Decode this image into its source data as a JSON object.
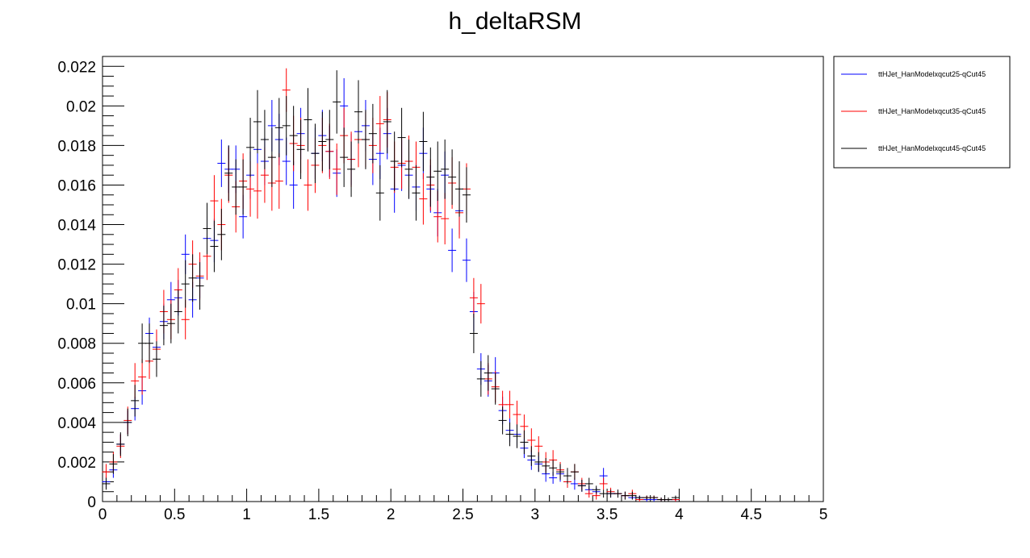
{
  "chart_data": {
    "type": "scatter",
    "title": "h_deltaRSM",
    "xlabel": "",
    "ylabel": "",
    "xlim": [
      0,
      5
    ],
    "ylim": [
      0,
      0.0225
    ],
    "bin_width": 0.05,
    "x_ticks": [
      "0",
      "0.5",
      "1",
      "1.5",
      "2",
      "2.5",
      "3",
      "3.5",
      "4",
      "4.5",
      "5"
    ],
    "y_ticks": [
      "0",
      "0.002",
      "0.004",
      "0.006",
      "0.008",
      "0.01",
      "0.012",
      "0.014",
      "0.016",
      "0.018",
      "0.02",
      "0.022"
    ],
    "grid": false,
    "legend_position": "outside-top-right",
    "series": [
      {
        "name": "ttHJet_HanModelxqcut25-qCut45",
        "color": "#0000ff",
        "values": [
          0.001,
          0.0016,
          0.0029,
          0.004,
          0.0047,
          0.0056,
          0.0085,
          0.0078,
          0.0091,
          0.0102,
          0.0103,
          0.0125,
          0.0102,
          0.0113,
          0.0133,
          0.0132,
          0.0171,
          0.0168,
          0.0168,
          0.0144,
          0.0165,
          0.0178,
          0.0172,
          0.019,
          0.0183,
          0.0172,
          0.016,
          0.0186,
          0.0193,
          0.0176,
          0.0185,
          0.0177,
          0.0166,
          0.02,
          0.0173,
          0.0187,
          0.019,
          0.0173,
          0.0176,
          0.0186,
          0.0158,
          0.017,
          0.0165,
          0.0159,
          0.0176,
          0.0158,
          0.0146,
          0.0165,
          0.0127,
          0.0147,
          0.0122,
          0.0096,
          0.0067,
          0.0061,
          0.0065,
          0.0046,
          0.0036,
          0.0034,
          0.0027,
          0.0021,
          0.0019,
          0.0014,
          0.0012,
          0.0014,
          0.001,
          0.0009,
          0.0008,
          0.0006,
          0.0005,
          0.0013,
          0.0004,
          0.0004,
          0.0003,
          0.0002,
          0.0002,
          0.0001,
          0.0001,
          0.0001,
          0.0001,
          0.0001
        ],
        "errors": [
          0.0003,
          0.0004,
          0.0005,
          0.0006,
          0.0006,
          0.0007,
          0.0008,
          0.0008,
          0.0009,
          0.0009,
          0.0009,
          0.001,
          0.0009,
          0.001,
          0.0011,
          0.0011,
          0.0012,
          0.0012,
          0.0012,
          0.0011,
          0.0012,
          0.0013,
          0.0012,
          0.0013,
          0.0013,
          0.0012,
          0.0012,
          0.0013,
          0.0013,
          0.0013,
          0.0013,
          0.0013,
          0.0012,
          0.0014,
          0.0013,
          0.0013,
          0.0013,
          0.0013,
          0.0013,
          0.0013,
          0.0012,
          0.0013,
          0.0012,
          0.0012,
          0.0013,
          0.0012,
          0.0012,
          0.0012,
          0.0011,
          0.0012,
          0.0011,
          0.001,
          0.0008,
          0.0008,
          0.0008,
          0.0007,
          0.0006,
          0.0006,
          0.0005,
          0.0005,
          0.0004,
          0.0004,
          0.0003,
          0.0004,
          0.0003,
          0.0003,
          0.0003,
          0.0002,
          0.0002,
          0.0004,
          0.0002,
          0.0002,
          0.0002,
          0.0001,
          0.0001,
          0.0001,
          0.0001,
          0.0001,
          0.0001,
          0.0001
        ]
      },
      {
        "name": "ttHJet_HanModelxqcut35-qCut45",
        "color": "#ff0000",
        "values": [
          0.0015,
          0.002,
          0.0028,
          0.0041,
          0.0061,
          0.0063,
          0.0071,
          0.0077,
          0.0096,
          0.0092,
          0.0107,
          0.0092,
          0.012,
          0.0114,
          0.0124,
          0.0152,
          0.014,
          0.0165,
          0.0149,
          0.0162,
          0.0158,
          0.0157,
          0.0165,
          0.0161,
          0.0162,
          0.0208,
          0.0181,
          0.018,
          0.016,
          0.017,
          0.018,
          0.0177,
          0.0168,
          0.0185,
          0.0173,
          0.0183,
          0.0183,
          0.018,
          0.0191,
          0.0193,
          0.0169,
          0.0171,
          0.0172,
          0.0169,
          0.0153,
          0.016,
          0.0144,
          0.0143,
          0.0161,
          0.0146,
          0.0158,
          0.0103,
          0.01,
          0.0062,
          0.0058,
          0.0049,
          0.0049,
          0.0044,
          0.0038,
          0.0031,
          0.0028,
          0.002,
          0.0021,
          0.0016,
          0.001,
          0.0015,
          0.0009,
          0.0004,
          0.0003,
          0.0009,
          0.0005,
          0.0004,
          0.0003,
          0.0004,
          0.0001,
          0.0002,
          0.0002,
          0.0001,
          0.0001,
          0.0001
        ],
        "errors": [
          0.0004,
          0.0005,
          0.0006,
          0.0007,
          0.0009,
          0.0009,
          0.0009,
          0.001,
          0.0011,
          0.001,
          0.0011,
          0.001,
          0.0012,
          0.0012,
          0.0012,
          0.0013,
          0.0013,
          0.0014,
          0.0013,
          0.0014,
          0.0014,
          0.0014,
          0.0014,
          0.0014,
          0.0014,
          0.0011,
          0.0014,
          0.0014,
          0.0013,
          0.0014,
          0.0014,
          0.0014,
          0.0013,
          0.0014,
          0.0014,
          0.0014,
          0.0014,
          0.0014,
          0.0014,
          0.0014,
          0.0013,
          0.0013,
          0.0013,
          0.0013,
          0.0013,
          0.0013,
          0.0013,
          0.0013,
          0.0013,
          0.0013,
          0.0013,
          0.001,
          0.001,
          0.0008,
          0.0008,
          0.0007,
          0.0007,
          0.0007,
          0.0006,
          0.0006,
          0.0005,
          0.0005,
          0.0005,
          0.0004,
          0.0003,
          0.0004,
          0.0003,
          0.0002,
          0.0002,
          0.0003,
          0.0002,
          0.0002,
          0.0002,
          0.0002,
          0.0001,
          0.0001,
          0.0001,
          0.0001,
          0.0001,
          0.0001
        ]
      },
      {
        "name": "ttHJet_HanModelxqcut45-qCut45",
        "color": "#000000",
        "values": [
          0.0009,
          0.0019,
          0.0029,
          0.004,
          0.0051,
          0.008,
          0.008,
          0.0072,
          0.0089,
          0.009,
          0.0096,
          0.011,
          0.0113,
          0.0109,
          0.0138,
          0.0129,
          0.0135,
          0.0166,
          0.0159,
          0.0159,
          0.0179,
          0.0192,
          0.0183,
          0.0174,
          0.0189,
          0.019,
          0.0185,
          0.0178,
          0.0193,
          0.0176,
          0.0182,
          0.0183,
          0.0202,
          0.0174,
          0.0168,
          0.0197,
          0.0183,
          0.0186,
          0.0156,
          0.0192,
          0.0172,
          0.0184,
          0.0168,
          0.0156,
          0.0182,
          0.0164,
          0.0167,
          0.0168,
          0.0164,
          0.0158,
          0.0155,
          0.0085,
          0.0062,
          0.0065,
          0.0057,
          0.0041,
          0.0034,
          0.0033,
          0.003,
          0.0023,
          0.002,
          0.0018,
          0.0017,
          0.0015,
          0.0013,
          0.0015,
          0.0008,
          0.0009,
          0.0006,
          0.0004,
          0.0004,
          0.0004,
          0.0003,
          0.0003,
          0.0002,
          0.0002,
          0.0002,
          0.0001,
          0.0001,
          0.0002
        ],
        "errors": [
          0.0003,
          0.0005,
          0.0006,
          0.0007,
          0.0008,
          0.001,
          0.001,
          0.0009,
          0.001,
          0.001,
          0.0011,
          0.0012,
          0.0012,
          0.0012,
          0.0013,
          0.0013,
          0.0013,
          0.0014,
          0.0014,
          0.0014,
          0.0015,
          0.0016,
          0.0015,
          0.0015,
          0.0015,
          0.0015,
          0.0015,
          0.0015,
          0.0016,
          0.0015,
          0.0015,
          0.0015,
          0.0016,
          0.0015,
          0.0014,
          0.0016,
          0.0015,
          0.0015,
          0.0014,
          0.0016,
          0.0015,
          0.0015,
          0.0015,
          0.0014,
          0.0015,
          0.0015,
          0.0015,
          0.0015,
          0.0014,
          0.0014,
          0.0014,
          0.001,
          0.0009,
          0.0009,
          0.0008,
          0.0007,
          0.0006,
          0.0006,
          0.0006,
          0.0005,
          0.0005,
          0.0004,
          0.0004,
          0.0004,
          0.0004,
          0.0004,
          0.0003,
          0.0003,
          0.0002,
          0.0002,
          0.0002,
          0.0002,
          0.0002,
          0.0002,
          0.0001,
          0.0001,
          0.0001,
          0.0001,
          0.0001,
          0.0001
        ]
      }
    ]
  }
}
